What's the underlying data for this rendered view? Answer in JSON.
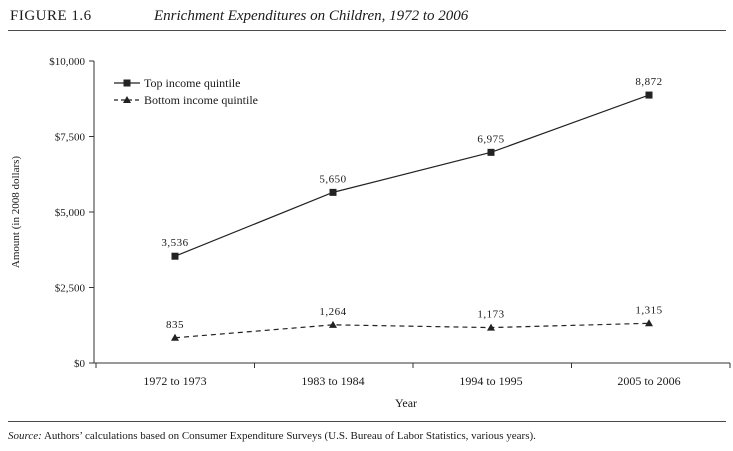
{
  "header": {
    "figure_label": "FIGURE 1.6",
    "title": "Enrichment Expenditures on Children, 1972 to 2006"
  },
  "footer": {
    "source_label": "Source:",
    "source_text": "Authors’ calculations based on Consumer Expenditure Surveys (U.S. Bureau of Labor Statistics, various years)."
  },
  "chart_data": {
    "type": "line",
    "title": "Enrichment Expenditures on Children, 1972 to 2006",
    "xlabel": "Year",
    "ylabel": "Amount (in 2008 dollars)",
    "categories": [
      "1972 to 1973",
      "1983 to 1984",
      "1994 to 1995",
      "2005 to 2006"
    ],
    "ylim": [
      0,
      10000
    ],
    "yticks": [
      0,
      2500,
      5000,
      7500,
      10000
    ],
    "ytick_labels": [
      "$0",
      "$2,500",
      "$5,000",
      "$7,500",
      "$10,000"
    ],
    "grid": false,
    "legend": "top-left",
    "series": [
      {
        "name": "Top income quintile",
        "marker": "square",
        "line": "solid",
        "color": "#222222",
        "values": [
          3536,
          5650,
          6975,
          8872
        ],
        "labels": [
          "3,536",
          "5,650",
          "6,975",
          "8,872"
        ]
      },
      {
        "name": "Bottom income quintile",
        "marker": "triangle",
        "line": "dashed",
        "color": "#222222",
        "values": [
          835,
          1264,
          1173,
          1315
        ],
        "labels": [
          "835",
          "1,264",
          "1,173",
          "1,315"
        ]
      }
    ]
  }
}
